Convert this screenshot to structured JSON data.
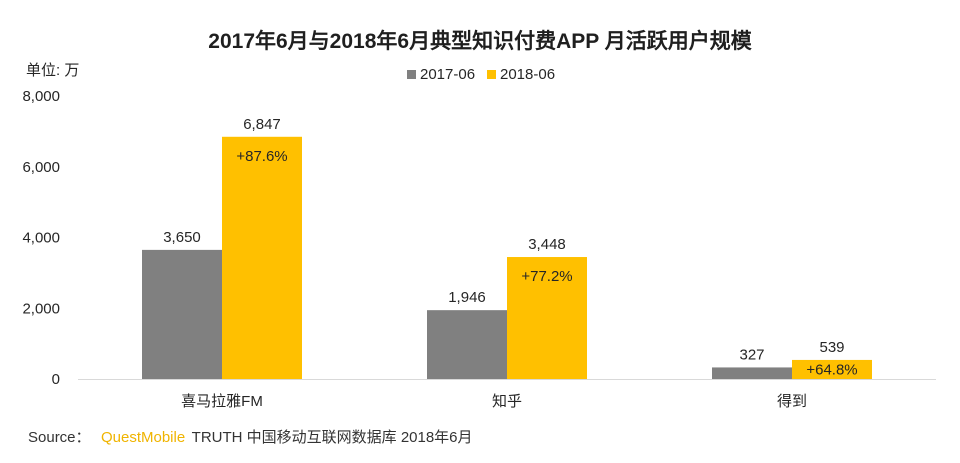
{
  "chart_data": {
    "type": "bar",
    "title": "2017年6月与2018年6月典型知识付费APP 月活跃用户规模",
    "unit_label": "单位: 万",
    "categories": [
      "喜马拉雅FM",
      "知乎",
      "得到"
    ],
    "series": [
      {
        "name": "2017-06",
        "color": "#808080",
        "values": [
          3650,
          1946,
          327
        ]
      },
      {
        "name": "2018-06",
        "color": "#ffc000",
        "values": [
          6847,
          3448,
          539
        ]
      }
    ],
    "growth_labels": [
      "+87.6%",
      "+77.2%",
      "+64.8%"
    ],
    "ylim": [
      0,
      8000
    ],
    "yticks": [
      0,
      2000,
      4000,
      6000,
      8000
    ],
    "ytick_labels": [
      "0",
      "2,000",
      "4,000",
      "6,000",
      "8,000"
    ],
    "value_labels": [
      [
        "3,650",
        "1,946",
        "327"
      ],
      [
        "6,847",
        "3,448",
        "539"
      ]
    ],
    "grid": false,
    "legend_position": "top-center",
    "xlabel": "",
    "ylabel": ""
  },
  "source": {
    "prefix": "Source：",
    "brand": "QuestMobile",
    "suffix": "TRUTH 中国移动互联网数据库 2018年6月"
  }
}
